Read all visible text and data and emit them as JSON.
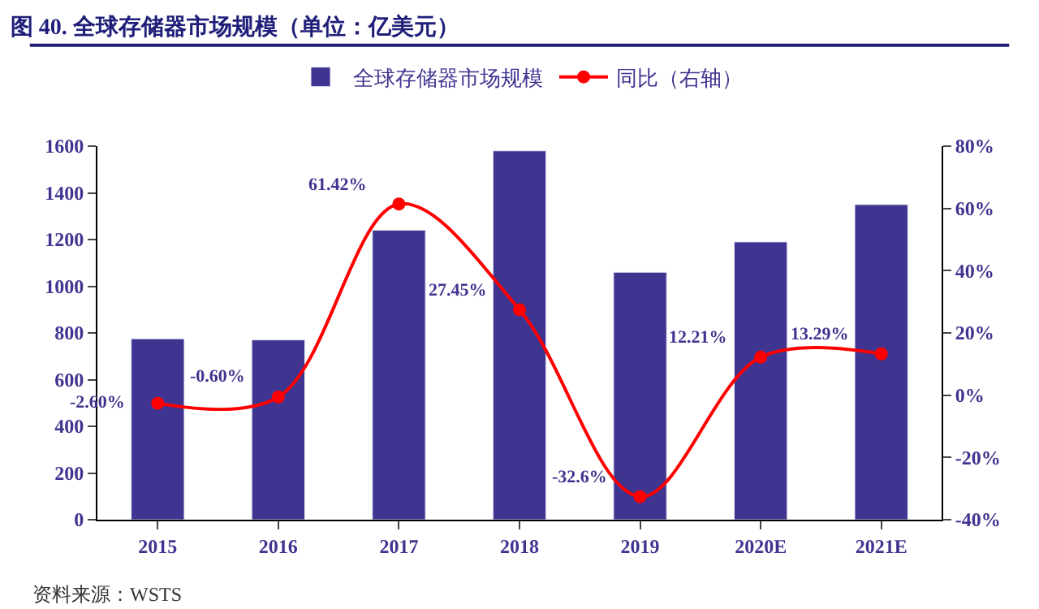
{
  "chart_data": {
    "type": "bar",
    "title": "图 40. 全球存储器市场规模（单位：亿美元）",
    "categories": [
      "2015",
      "2016",
      "2017",
      "2018",
      "2019",
      "2020E",
      "2021E"
    ],
    "series": [
      {
        "name": "全球存储器市场规模",
        "color": "#3f3590",
        "values": [
          775,
          770,
          1240,
          1580,
          1060,
          1190,
          1350
        ]
      },
      {
        "name": "同比（右轴）",
        "type": "line",
        "axis": "y2",
        "color": "#ff0000",
        "values": [
          -2.6,
          -0.6,
          61.42,
          27.45,
          -32.6,
          12.21,
          13.29
        ],
        "value_labels": [
          "-2.60%",
          "-0.60%",
          "61.42%",
          "27.45%",
          "-32.6%",
          "12.21%",
          "13.29%"
        ]
      }
    ],
    "ylim": [
      0,
      1600
    ],
    "yticks": [
      0,
      200,
      400,
      600,
      800,
      1000,
      1200,
      1400,
      1600
    ],
    "y2lim": [
      -40,
      80
    ],
    "y2ticks": [
      {
        "value": -40,
        "label": "-40%"
      },
      {
        "value": -20,
        "label": "-20%"
      },
      {
        "value": 0,
        "label": "0%"
      },
      {
        "value": 20,
        "label": "20%"
      },
      {
        "value": 40,
        "label": "40%"
      },
      {
        "value": 60,
        "label": "60%"
      },
      {
        "value": 80,
        "label": "80%"
      }
    ],
    "legend": "top",
    "marker": "circle",
    "line_style": "solid",
    "annotations": [
      "资料来源：WSTS"
    ]
  }
}
